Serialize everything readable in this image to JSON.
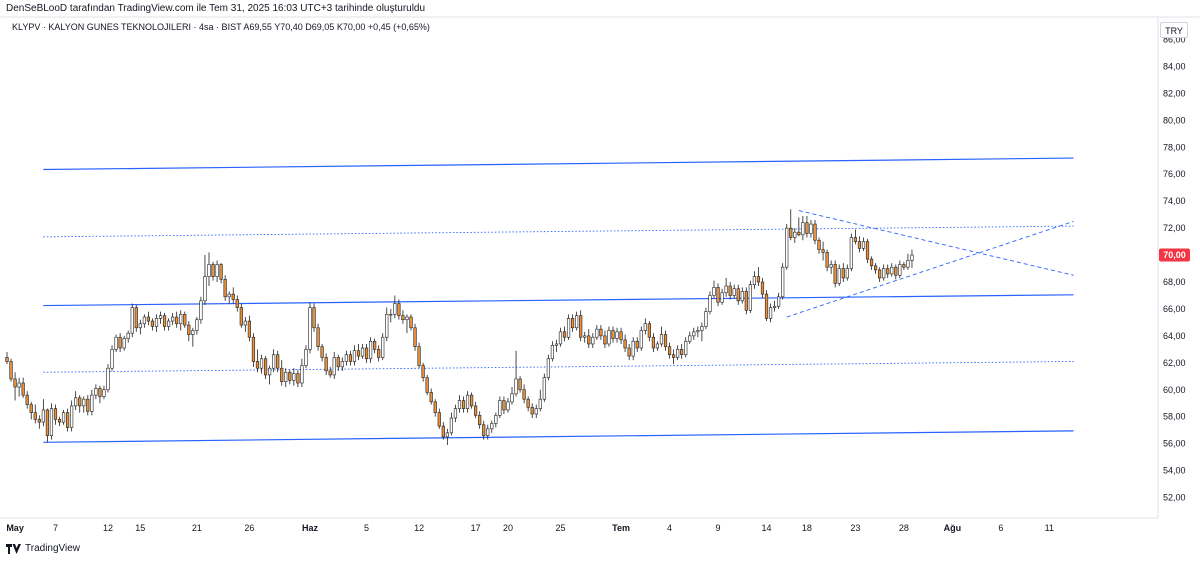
{
  "header": {
    "attribution": "DenSeBLooD tarafından TradingView.com ile Tem 31, 2025 16:03 UTC+3 tarihinde oluşturuldu",
    "symbol_line": "KLYPV · KALYON GUNES TEKNOLOJILERI · 4sa · BIST  A69,55  Y70,40  D69,05  K70,00  +0,45 (+0,65%)",
    "currency": "TRY"
  },
  "footer": {
    "brand": "TradingView"
  },
  "chart_data": {
    "type": "candlestick",
    "y_axis": {
      "range": [
        50.5,
        86.5
      ],
      "ticks": [
        "52,00",
        "54,00",
        "56,00",
        "58,00",
        "60,00",
        "62,00",
        "64,00",
        "66,00",
        "68,00",
        "70,00",
        "72,00",
        "74,00",
        "76,00",
        "78,00",
        "80,00",
        "82,00",
        "84,00"
      ],
      "values": [
        52,
        54,
        56,
        58,
        60,
        62,
        64,
        66,
        68,
        70,
        72,
        74,
        76,
        78,
        80,
        82,
        84
      ]
    },
    "x_axis": {
      "labels": [
        "May",
        "7",
        "12",
        "15",
        "21",
        "26",
        "Haz",
        "5",
        "12",
        "17",
        "20",
        "25",
        "Tem",
        "4",
        "9",
        "14",
        "18",
        "23",
        "28",
        "Ağu",
        "6",
        "11"
      ],
      "bold": [
        "May",
        "Haz",
        "Tem",
        "Ağu"
      ],
      "bar_index": [
        2,
        12,
        25,
        33,
        47,
        60,
        75,
        89,
        102,
        116,
        124,
        137,
        152,
        164,
        176,
        188,
        198,
        210,
        222,
        234,
        246,
        258
      ]
    },
    "last_price": {
      "label": "70,00",
      "value": 70.0,
      "color": "#f23645"
    },
    "candle_colors": {
      "up": "#ffffff",
      "down": "#e8913c",
      "outline": "#1f1f1f"
    },
    "bar_count": 265,
    "candles": [
      [
        62.4,
        62.8,
        61.9,
        62.1
      ],
      [
        62.1,
        62.3,
        60.6,
        60.8
      ],
      [
        60.8,
        61.3,
        59.2,
        60.2
      ],
      [
        60.2,
        60.9,
        59.5,
        60.5
      ],
      [
        60.5,
        60.9,
        59.4,
        59.6
      ],
      [
        59.6,
        59.9,
        58.6,
        58.9
      ],
      [
        58.9,
        59.1,
        57.8,
        58.3
      ],
      [
        58.3,
        58.9,
        57.5,
        57.8
      ],
      [
        57.8,
        58.1,
        57.1,
        57.6
      ],
      [
        57.6,
        59.3,
        57.3,
        58.5
      ],
      [
        58.5,
        58.6,
        56.1,
        56.6
      ],
      [
        56.6,
        59.0,
        56.3,
        58.6
      ],
      [
        58.6,
        58.9,
        57.4,
        57.8
      ],
      [
        57.8,
        58.0,
        57.3,
        57.6
      ],
      [
        57.6,
        58.5,
        57.4,
        58.3
      ],
      [
        58.3,
        58.6,
        56.9,
        57.2
      ],
      [
        57.2,
        59.2,
        56.9,
        58.8
      ],
      [
        58.8,
        59.9,
        58.5,
        59.4
      ],
      [
        59.4,
        59.6,
        58.3,
        58.8
      ],
      [
        58.8,
        59.5,
        58.3,
        59.3
      ],
      [
        59.3,
        59.6,
        58.1,
        58.4
      ],
      [
        58.4,
        60.0,
        58.1,
        59.6
      ],
      [
        59.6,
        60.4,
        59.3,
        60.1
      ],
      [
        60.1,
        60.3,
        59.0,
        59.5
      ],
      [
        59.5,
        60.3,
        59.3,
        60.0
      ],
      [
        60.0,
        61.9,
        59.8,
        61.6
      ],
      [
        61.6,
        63.3,
        61.4,
        63.0
      ],
      [
        63.0,
        64.1,
        62.8,
        63.9
      ],
      [
        63.9,
        64.2,
        62.8,
        63.1
      ],
      [
        63.1,
        64.0,
        62.9,
        63.8
      ],
      [
        63.8,
        64.4,
        63.5,
        64.2
      ],
      [
        64.2,
        66.4,
        63.9,
        66.1
      ],
      [
        66.1,
        66.3,
        64.3,
        64.6
      ],
      [
        64.6,
        65.2,
        64.1,
        64.9
      ],
      [
        64.9,
        65.6,
        64.6,
        65.4
      ],
      [
        65.4,
        65.8,
        64.8,
        65.1
      ],
      [
        65.1,
        65.3,
        64.4,
        64.7
      ],
      [
        64.7,
        65.6,
        64.3,
        65.3
      ],
      [
        65.3,
        65.8,
        64.9,
        65.5
      ],
      [
        65.5,
        65.7,
        64.4,
        64.7
      ],
      [
        64.7,
        65.3,
        64.4,
        65.1
      ],
      [
        65.1,
        65.7,
        64.8,
        65.4
      ],
      [
        65.4,
        65.8,
        64.6,
        64.9
      ],
      [
        64.9,
        65.9,
        64.4,
        65.6
      ],
      [
        65.6,
        65.8,
        64.6,
        64.8
      ],
      [
        64.8,
        65.1,
        63.6,
        64.1
      ],
      [
        64.1,
        64.6,
        63.2,
        64.4
      ],
      [
        64.4,
        65.4,
        64.1,
        65.2
      ],
      [
        65.2,
        66.9,
        64.9,
        66.6
      ],
      [
        66.6,
        70.0,
        66.3,
        68.4
      ],
      [
        68.4,
        70.2,
        67.7,
        69.3
      ],
      [
        69.3,
        69.5,
        68.1,
        68.4
      ],
      [
        68.4,
        69.6,
        68.0,
        69.3
      ],
      [
        69.3,
        69.4,
        67.9,
        68.2
      ],
      [
        68.2,
        68.5,
        66.6,
        66.9
      ],
      [
        66.9,
        67.3,
        66.4,
        67.1
      ],
      [
        67.1,
        67.6,
        66.4,
        66.7
      ],
      [
        66.7,
        67.0,
        65.8,
        66.1
      ],
      [
        66.1,
        66.4,
        64.6,
        64.8
      ],
      [
        64.8,
        65.4,
        64.3,
        65.1
      ],
      [
        65.1,
        65.5,
        63.6,
        63.9
      ],
      [
        63.9,
        64.2,
        61.7,
        62.1
      ],
      [
        62.1,
        63.0,
        61.3,
        61.6
      ],
      [
        61.6,
        62.6,
        61.2,
        62.3
      ],
      [
        62.3,
        62.5,
        60.8,
        61.1
      ],
      [
        61.1,
        61.8,
        60.4,
        61.6
      ],
      [
        61.6,
        63.0,
        61.3,
        62.6
      ],
      [
        62.6,
        62.9,
        61.3,
        61.6
      ],
      [
        61.6,
        62.2,
        60.3,
        60.6
      ],
      [
        60.6,
        61.6,
        60.2,
        61.3
      ],
      [
        61.3,
        61.5,
        60.4,
        60.7
      ],
      [
        60.7,
        61.6,
        60.3,
        61.2
      ],
      [
        61.2,
        61.5,
        60.2,
        60.5
      ],
      [
        60.5,
        62.3,
        60.2,
        61.8
      ],
      [
        61.8,
        63.3,
        61.6,
        63.0
      ],
      [
        63.0,
        66.5,
        62.7,
        66.1
      ],
      [
        66.1,
        66.4,
        64.3,
        64.6
      ],
      [
        64.6,
        64.9,
        62.9,
        63.2
      ],
      [
        63.2,
        63.4,
        62.1,
        62.4
      ],
      [
        62.4,
        62.7,
        61.1,
        61.4
      ],
      [
        61.4,
        61.7,
        60.9,
        61.1
      ],
      [
        61.1,
        62.8,
        60.8,
        62.4
      ],
      [
        62.4,
        62.6,
        61.4,
        61.7
      ],
      [
        61.7,
        62.4,
        61.4,
        62.1
      ],
      [
        62.1,
        62.9,
        61.8,
        62.6
      ],
      [
        62.6,
        62.9,
        61.8,
        62.1
      ],
      [
        62.1,
        63.3,
        61.8,
        62.9
      ],
      [
        62.9,
        63.4,
        62.2,
        62.5
      ],
      [
        62.5,
        63.4,
        62.3,
        63.1
      ],
      [
        63.1,
        63.4,
        62.0,
        62.3
      ],
      [
        62.3,
        63.9,
        62.0,
        63.6
      ],
      [
        63.6,
        63.8,
        62.7,
        63.0
      ],
      [
        63.0,
        63.3,
        62.1,
        62.4
      ],
      [
        62.4,
        64.2,
        62.2,
        63.9
      ],
      [
        63.9,
        66.1,
        63.6,
        65.6
      ],
      [
        65.6,
        66.0,
        65.0,
        65.6
      ],
      [
        65.6,
        67.0,
        65.3,
        66.4
      ],
      [
        66.4,
        66.7,
        65.2,
        65.5
      ],
      [
        65.5,
        65.9,
        64.9,
        65.2
      ],
      [
        65.2,
        65.6,
        64.2,
        65.4
      ],
      [
        65.4,
        65.6,
        64.4,
        64.6
      ],
      [
        64.6,
        64.9,
        62.9,
        63.2
      ],
      [
        63.2,
        63.5,
        61.6,
        61.8
      ],
      [
        61.8,
        62.0,
        60.6,
        60.9
      ],
      [
        60.9,
        61.1,
        59.6,
        59.8
      ],
      [
        59.8,
        60.1,
        58.9,
        59.1
      ],
      [
        59.1,
        59.3,
        58.0,
        58.3
      ],
      [
        58.3,
        58.6,
        57.1,
        57.3
      ],
      [
        57.3,
        57.6,
        56.3,
        56.5
      ],
      [
        56.5,
        57.1,
        55.9,
        56.8
      ],
      [
        56.8,
        58.3,
        56.6,
        57.9
      ],
      [
        57.9,
        58.9,
        57.6,
        58.6
      ],
      [
        58.6,
        59.6,
        58.3,
        59.2
      ],
      [
        59.2,
        59.5,
        58.3,
        58.6
      ],
      [
        58.6,
        59.9,
        58.3,
        59.6
      ],
      [
        59.6,
        59.8,
        58.6,
        58.8
      ],
      [
        58.8,
        59.1,
        57.9,
        58.1
      ],
      [
        58.1,
        58.4,
        57.1,
        57.4
      ],
      [
        57.4,
        57.7,
        56.3,
        56.6
      ],
      [
        56.6,
        57.4,
        56.3,
        57.1
      ],
      [
        57.1,
        57.7,
        56.8,
        57.5
      ],
      [
        57.5,
        58.3,
        57.2,
        58.1
      ],
      [
        58.1,
        59.5,
        57.9,
        59.2
      ],
      [
        59.2,
        59.5,
        58.2,
        58.5
      ],
      [
        58.5,
        59.4,
        58.3,
        59.1
      ],
      [
        59.1,
        60.2,
        58.9,
        59.7
      ],
      [
        59.7,
        62.9,
        59.5,
        60.8
      ],
      [
        60.8,
        61.0,
        59.8,
        60.0
      ],
      [
        60.0,
        60.4,
        59.0,
        59.3
      ],
      [
        59.3,
        59.5,
        58.4,
        58.7
      ],
      [
        58.7,
        59.0,
        57.9,
        58.2
      ],
      [
        58.2,
        58.9,
        57.9,
        58.6
      ],
      [
        58.6,
        60.0,
        58.4,
        59.3
      ],
      [
        59.3,
        61.2,
        59.1,
        60.9
      ],
      [
        60.9,
        62.6,
        60.7,
        62.3
      ],
      [
        62.3,
        63.6,
        62.1,
        63.3
      ],
      [
        63.3,
        63.7,
        62.8,
        63.4
      ],
      [
        63.4,
        64.6,
        63.2,
        64.3
      ],
      [
        64.3,
        64.7,
        63.6,
        63.9
      ],
      [
        63.9,
        65.6,
        63.7,
        65.3
      ],
      [
        65.3,
        65.6,
        64.3,
        64.6
      ],
      [
        64.6,
        65.8,
        64.4,
        65.5
      ],
      [
        65.5,
        65.9,
        63.6,
        63.9
      ],
      [
        63.9,
        64.3,
        63.5,
        64.0
      ],
      [
        64.0,
        64.5,
        63.1,
        63.4
      ],
      [
        63.4,
        64.2,
        63.1,
        63.9
      ],
      [
        63.9,
        64.8,
        63.7,
        64.5
      ],
      [
        64.5,
        64.8,
        63.7,
        64.0
      ],
      [
        64.0,
        64.4,
        63.1,
        63.4
      ],
      [
        63.4,
        64.7,
        63.2,
        64.4
      ],
      [
        64.4,
        64.7,
        63.5,
        63.8
      ],
      [
        63.8,
        64.6,
        63.5,
        64.3
      ],
      [
        64.3,
        64.6,
        63.4,
        63.7
      ],
      [
        63.7,
        64.1,
        62.8,
        63.1
      ],
      [
        63.1,
        63.4,
        62.2,
        62.5
      ],
      [
        62.5,
        63.9,
        62.2,
        63.6
      ],
      [
        63.6,
        63.9,
        62.8,
        63.1
      ],
      [
        63.1,
        64.7,
        62.9,
        64.4
      ],
      [
        64.4,
        65.3,
        64.1,
        64.9
      ],
      [
        64.9,
        65.1,
        63.6,
        63.9
      ],
      [
        63.9,
        64.2,
        62.8,
        63.1
      ],
      [
        63.1,
        63.6,
        62.9,
        63.4
      ],
      [
        63.4,
        64.7,
        63.2,
        64.1
      ],
      [
        64.1,
        64.4,
        62.9,
        63.2
      ],
      [
        63.2,
        63.5,
        62.3,
        62.6
      ],
      [
        62.6,
        63.0,
        61.9,
        62.4
      ],
      [
        62.4,
        63.3,
        62.2,
        63.0
      ],
      [
        63.0,
        63.4,
        62.3,
        62.6
      ],
      [
        62.6,
        63.9,
        62.4,
        63.6
      ],
      [
        63.6,
        64.3,
        63.4,
        64.0
      ],
      [
        64.0,
        64.6,
        63.7,
        64.3
      ],
      [
        64.3,
        64.7,
        63.9,
        64.4
      ],
      [
        64.4,
        65.0,
        63.6,
        64.7
      ],
      [
        64.7,
        66.1,
        64.5,
        65.8
      ],
      [
        65.8,
        67.3,
        65.6,
        67.0
      ],
      [
        67.0,
        68.1,
        66.8,
        67.6
      ],
      [
        67.6,
        67.9,
        66.2,
        66.5
      ],
      [
        66.5,
        67.5,
        66.3,
        67.2
      ],
      [
        67.2,
        68.3,
        66.9,
        67.7
      ],
      [
        67.7,
        68.0,
        66.7,
        67.0
      ],
      [
        67.0,
        67.8,
        66.8,
        67.5
      ],
      [
        67.5,
        67.8,
        66.3,
        66.6
      ],
      [
        66.6,
        67.6,
        66.4,
        67.3
      ],
      [
        67.3,
        67.6,
        65.6,
        65.9
      ],
      [
        65.9,
        68.1,
        65.7,
        67.8
      ],
      [
        67.8,
        68.8,
        67.5,
        68.4
      ],
      [
        68.4,
        69.1,
        67.7,
        68.0
      ],
      [
        68.0,
        68.3,
        66.8,
        67.1
      ],
      [
        67.1,
        67.4,
        65.1,
        65.3
      ],
      [
        65.3,
        66.4,
        65.0,
        66.1
      ],
      [
        66.1,
        66.6,
        65.8,
        66.2
      ],
      [
        66.2,
        67.2,
        66.0,
        66.9
      ],
      [
        66.9,
        69.4,
        66.7,
        69.1
      ],
      [
        69.1,
        72.3,
        68.9,
        72.0
      ],
      [
        72.0,
        73.4,
        71.1,
        71.3
      ],
      [
        71.3,
        72.0,
        70.9,
        71.7
      ],
      [
        71.7,
        72.8,
        71.4,
        71.5
      ],
      [
        71.5,
        72.9,
        71.1,
        72.4
      ],
      [
        72.4,
        72.9,
        71.3,
        71.6
      ],
      [
        71.6,
        72.6,
        71.3,
        72.3
      ],
      [
        72.3,
        72.6,
        70.8,
        71.1
      ],
      [
        71.1,
        71.3,
        70.1,
        70.4
      ],
      [
        70.4,
        71.0,
        69.6,
        70.2
      ],
      [
        70.2,
        70.4,
        68.8,
        69.1
      ],
      [
        69.1,
        69.6,
        68.6,
        69.3
      ],
      [
        69.3,
        69.6,
        67.6,
        67.9
      ],
      [
        67.9,
        69.3,
        67.7,
        69.0
      ],
      [
        69.0,
        69.4,
        68.0,
        68.3
      ],
      [
        68.3,
        69.3,
        68.1,
        69.0
      ],
      [
        69.0,
        71.6,
        68.8,
        71.3
      ],
      [
        71.3,
        71.9,
        70.8,
        71.0
      ],
      [
        71.0,
        71.4,
        70.2,
        70.5
      ],
      [
        70.5,
        71.3,
        70.3,
        71.0
      ],
      [
        71.0,
        71.2,
        69.4,
        69.7
      ],
      [
        69.7,
        69.9,
        68.9,
        69.2
      ],
      [
        69.2,
        69.4,
        68.6,
        68.9
      ],
      [
        68.9,
        69.1,
        68.0,
        68.3
      ],
      [
        68.3,
        69.3,
        68.1,
        69.0
      ],
      [
        69.0,
        69.3,
        68.3,
        68.6
      ],
      [
        68.6,
        69.4,
        68.4,
        69.1
      ],
      [
        69.1,
        69.3,
        68.2,
        68.5
      ],
      [
        68.5,
        69.6,
        68.3,
        69.3
      ],
      [
        69.3,
        69.5,
        68.9,
        69.1
      ],
      [
        69.1,
        70.1,
        68.9,
        69.6
      ],
      [
        69.6,
        70.4,
        69.05,
        70.0
      ]
    ],
    "trendlines": [
      {
        "style": "solid",
        "color": "#2962ff",
        "from": [
          9,
          76.35
        ],
        "to": [
          264,
          77.2
        ]
      },
      {
        "style": "solid",
        "color": "#2962ff",
        "from": [
          9,
          66.25
        ],
        "to": [
          264,
          67.05
        ]
      },
      {
        "style": "solid",
        "color": "#2962ff",
        "from": [
          9,
          56.1
        ],
        "to": [
          264,
          56.95
        ]
      },
      {
        "style": "dotted",
        "color": "#2962ff",
        "from": [
          9,
          71.35
        ],
        "to": [
          264,
          72.15
        ]
      },
      {
        "style": "dotted",
        "color": "#2962ff",
        "from": [
          9,
          61.3
        ],
        "to": [
          264,
          62.1
        ]
      },
      {
        "style": "dashed",
        "color": "#2962ff",
        "from": [
          196,
          73.3
        ],
        "to": [
          264,
          68.5
        ]
      },
      {
        "style": "dashed",
        "color": "#2962ff",
        "from": [
          193,
          65.4
        ],
        "to": [
          264,
          72.5
        ]
      }
    ]
  }
}
